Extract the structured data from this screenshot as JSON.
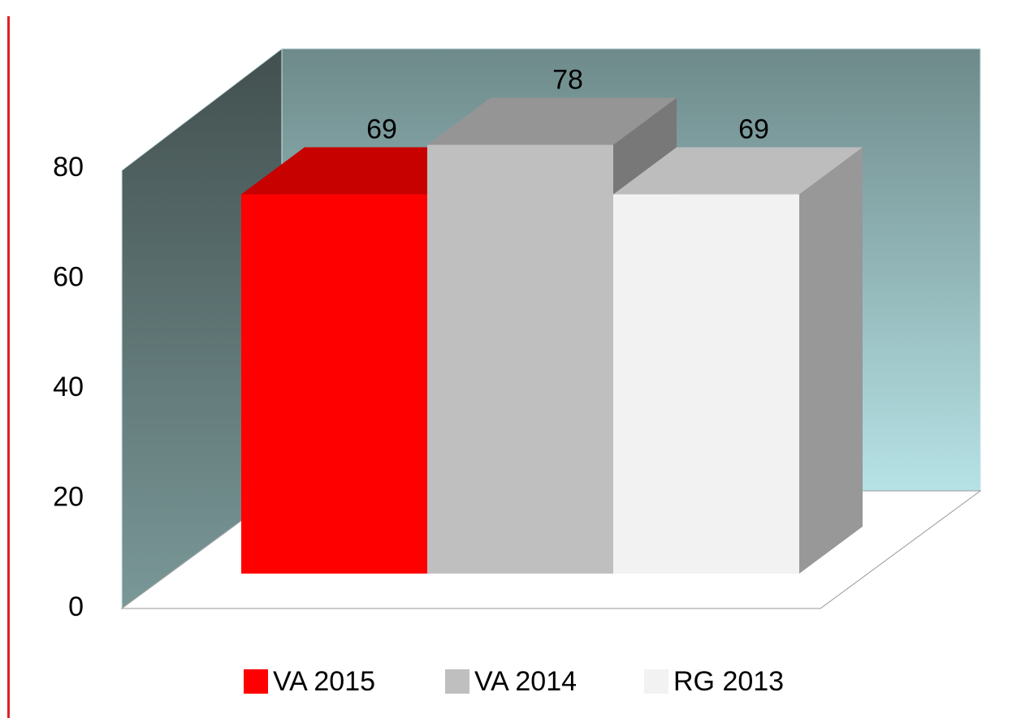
{
  "chart_data": {
    "type": "bar3d",
    "series": [
      {
        "name": "VA 2015",
        "color": "#ff0000",
        "values": [
          69
        ]
      },
      {
        "name": "VA 2014",
        "color": "#bfbfbf",
        "values": [
          78
        ]
      },
      {
        "name": "RG 2013",
        "color": "#f2f2f2",
        "values": [
          69
        ]
      }
    ],
    "ylim": [
      0,
      80
    ],
    "yticks": [
      0,
      20,
      40,
      60,
      80
    ],
    "grid": false,
    "legend": "bottom"
  }
}
